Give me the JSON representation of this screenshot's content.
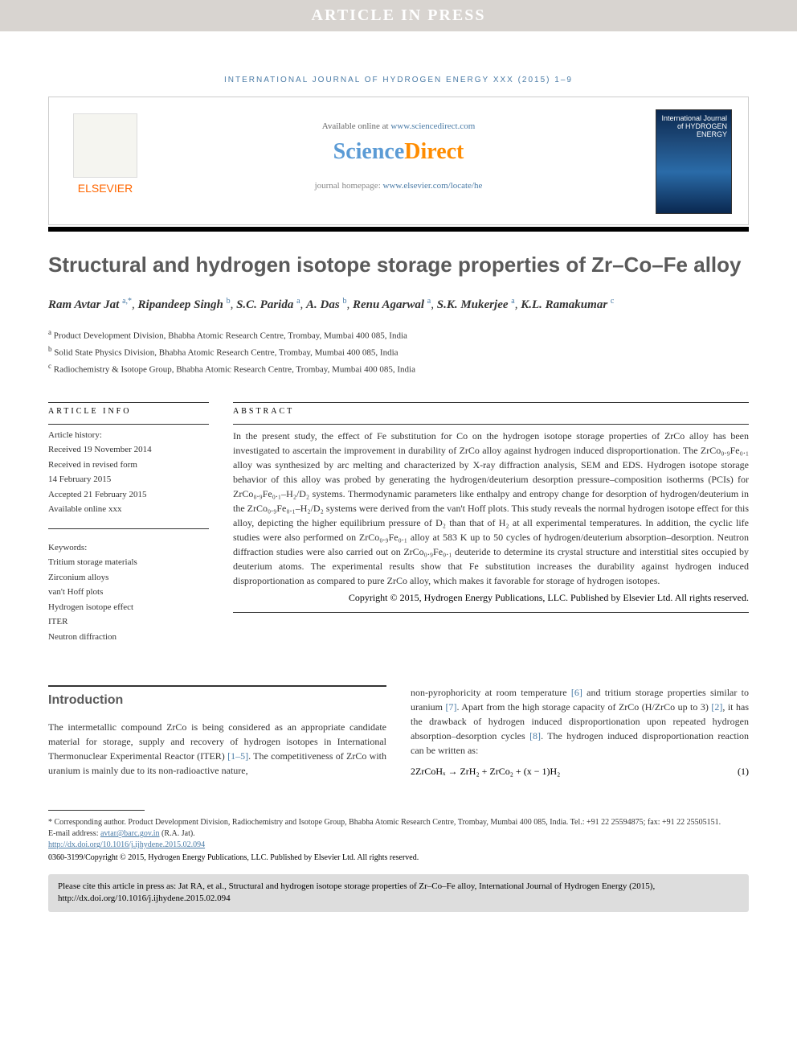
{
  "banner": "ARTICLE IN PRESS",
  "journal_ref": "INTERNATIONAL JOURNAL OF HYDROGEN ENERGY XXX (2015) 1–9",
  "header": {
    "elsevier": "ELSEVIER",
    "available_prefix": "Available online at ",
    "available_link": "www.sciencedirect.com",
    "sd_sci": "Science",
    "sd_dir": "Direct",
    "homepage_prefix": "journal homepage: ",
    "homepage_link": "www.elsevier.com/locate/he",
    "cover_text": "International Journal of HYDROGEN ENERGY"
  },
  "title": "Structural and hydrogen isotope storage properties of Zr–Co–Fe alloy",
  "authors": [
    {
      "name": "Ram Avtar Jat",
      "sup": "a,*"
    },
    {
      "name": "Ripandeep Singh",
      "sup": "b"
    },
    {
      "name": "S.C. Parida",
      "sup": "a"
    },
    {
      "name": "A. Das",
      "sup": "b"
    },
    {
      "name": "Renu Agarwal",
      "sup": "a"
    },
    {
      "name": "S.K. Mukerjee",
      "sup": "a"
    },
    {
      "name": "K.L. Ramakumar",
      "sup": "c"
    }
  ],
  "affiliations": [
    {
      "sup": "a",
      "text": "Product Development Division, Bhabha Atomic Research Centre, Trombay, Mumbai 400 085, India"
    },
    {
      "sup": "b",
      "text": "Solid State Physics Division, Bhabha Atomic Research Centre, Trombay, Mumbai 400 085, India"
    },
    {
      "sup": "c",
      "text": "Radiochemistry & Isotope Group, Bhabha Atomic Research Centre, Trombay, Mumbai 400 085, India"
    }
  ],
  "article_info": {
    "label": "ARTICLE INFO",
    "history_label": "Article history:",
    "received": "Received 19 November 2014",
    "revised1": "Received in revised form",
    "revised2": "14 February 2015",
    "accepted": "Accepted 21 February 2015",
    "online": "Available online xxx",
    "keywords_label": "Keywords:",
    "keywords": [
      "Tritium storage materials",
      "Zirconium alloys",
      "van't Hoff plots",
      "Hydrogen isotope effect",
      "ITER",
      "Neutron diffraction"
    ]
  },
  "abstract": {
    "label": "ABSTRACT",
    "text": "In the present study, the effect of Fe substitution for Co on the hydrogen isotope storage properties of ZrCo alloy has been investigated to ascertain the improvement in durability of ZrCo alloy against hydrogen induced disproportionation. The ZrCo₀.₉Fe₀.₁ alloy was synthesized by arc melting and characterized by X-ray diffraction analysis, SEM and EDS. Hydrogen isotope storage behavior of this alloy was probed by generating the hydrogen/deuterium desorption pressure–composition isotherms (PCIs) for ZrCo₀.₉Fe₀.₁–H₂/D₂ systems. Thermodynamic parameters like enthalpy and entropy change for desorption of hydrogen/deuterium in the ZrCo₀.₉Fe₀.₁–H₂/D₂ systems were derived from the van't Hoff plots. This study reveals the normal hydrogen isotope effect for this alloy, depicting the higher equilibrium pressure of D₂ than that of H₂ at all experimental temperatures. In addition, the cyclic life studies were also performed on ZrCo₀.₉Fe₀.₁ alloy at 583 K up to 50 cycles of hydrogen/deuterium absorption–desorption. Neutron diffraction studies were also carried out on ZrCo₀.₉Fe₀.₁ deuteride to determine its crystal structure and interstitial sites occupied by deuterium atoms. The experimental results show that Fe substitution increases the durability against hydrogen induced disproportionation as compared to pure ZrCo alloy, which makes it favorable for storage of hydrogen isotopes.",
    "copyright": "Copyright © 2015, Hydrogen Energy Publications, LLC. Published by Elsevier Ltd. All rights reserved."
  },
  "intro": {
    "heading": "Introduction",
    "col1": "The intermetallic compound ZrCo is being considered as an appropriate candidate material for storage, supply and recovery of hydrogen isotopes in International Thermonuclear Experimental Reactor (ITER) [1–5]. The competitiveness of ZrCo with uranium is mainly due to its non-radioactive nature,",
    "col2_p1": "non-pyrophoricity at room temperature [6] and tritium storage properties similar to uranium [7]. Apart from the high storage capacity of ZrCo (H/ZrCo up to 3) [2], it has the drawback of hydrogen induced disproportionation upon repeated hydrogen absorption–desorption cycles [8]. The hydrogen induced disproportionation reaction can be written as:",
    "equation": "2ZrCoHₓ → ZrH₂ + ZrCo₂ + (x − 1)H₂",
    "eq_num": "(1)"
  },
  "footer": {
    "corresponding": "* Corresponding author. Product Development Division, Radiochemistry and Isotope Group, Bhabha Atomic Research Centre, Trombay, Mumbai 400 085, India. Tel.: +91 22 25594875; fax: +91 22 25505151.",
    "email_label": "E-mail address: ",
    "email": "avtar@barc.gov.in",
    "email_suffix": " (R.A. Jat).",
    "doi": "http://dx.doi.org/10.1016/j.ijhydene.2015.02.094",
    "issn": "0360-3199/Copyright © 2015, Hydrogen Energy Publications, LLC. Published by Elsevier Ltd. All rights reserved.",
    "cite": "Please cite this article in press as: Jat RA, et al., Structural and hydrogen isotope storage properties of Zr–Co–Fe alloy, International Journal of Hydrogen Energy (2015), http://dx.doi.org/10.1016/j.ijhydene.2015.02.094"
  }
}
